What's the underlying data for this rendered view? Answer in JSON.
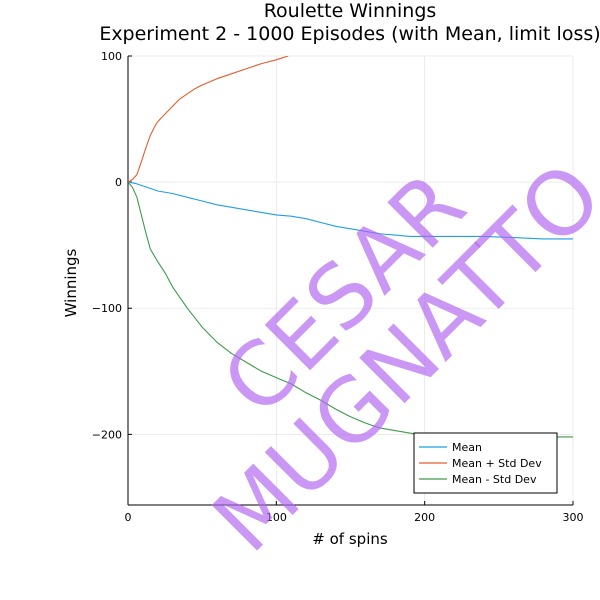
{
  "chart_data": {
    "type": "line",
    "title": "Roulette Winnings",
    "subtitle": "Experiment 2 - 1000 Episodes (with Mean, limit loss)",
    "xlabel": "# of spins",
    "ylabel": "Winnings",
    "xlim": [
      0,
      300
    ],
    "ylim": [
      -256,
      100
    ],
    "xticks": [
      0,
      100,
      200,
      300
    ],
    "yticks": [
      100,
      0,
      -100,
      -200
    ],
    "ytick_labels": [
      "100",
      "0",
      "−100",
      "−200"
    ],
    "grid": true,
    "legend_position": "bottom-right",
    "series": [
      {
        "name": "Mean",
        "color": "#1f9ee8",
        "x": [
          0,
          5,
          10,
          15,
          20,
          30,
          40,
          50,
          60,
          70,
          80,
          90,
          100,
          110,
          120,
          130,
          140,
          150,
          160,
          170,
          180,
          190,
          200,
          220,
          240,
          260,
          280,
          300
        ],
        "y": [
          0,
          -1,
          -3,
          -5,
          -7,
          -9,
          -12,
          -15,
          -18,
          -20,
          -22,
          -24,
          -26,
          -27,
          -29,
          -32,
          -35,
          -37,
          -39,
          -41,
          -42,
          -43,
          -43,
          -43,
          -43,
          -44,
          -45,
          -45
        ]
      },
      {
        "name": "Mean + Std Dev",
        "color": "#e35d2e",
        "x": [
          0,
          3,
          6,
          9,
          12,
          15,
          18,
          20,
          25,
          30,
          35,
          40,
          45,
          50,
          60,
          70,
          80,
          90,
          100,
          108
        ],
        "y": [
          0,
          2,
          6,
          16,
          27,
          37,
          44,
          48,
          54,
          60,
          66,
          70,
          74,
          77,
          82,
          86,
          90,
          94,
          97,
          100
        ]
      },
      {
        "name": "Mean - Std Dev",
        "color": "#3e9a4b",
        "x": [
          0,
          3,
          6,
          9,
          12,
          15,
          20,
          25,
          30,
          40,
          50,
          60,
          70,
          80,
          90,
          100,
          110,
          120,
          130,
          140,
          150,
          160,
          170,
          180,
          190,
          200,
          220,
          240,
          260,
          280,
          300
        ],
        "y": [
          0,
          -4,
          -12,
          -26,
          -40,
          -53,
          -63,
          -72,
          -83,
          -100,
          -115,
          -127,
          -136,
          -143,
          -150,
          -155,
          -160,
          -167,
          -173,
          -180,
          -186,
          -191,
          -195,
          -197,
          -199,
          -201,
          -202,
          -202,
          -202,
          -202,
          -202
        ]
      }
    ],
    "watermark": [
      "CESAR",
      "MUGNATTO"
    ]
  }
}
